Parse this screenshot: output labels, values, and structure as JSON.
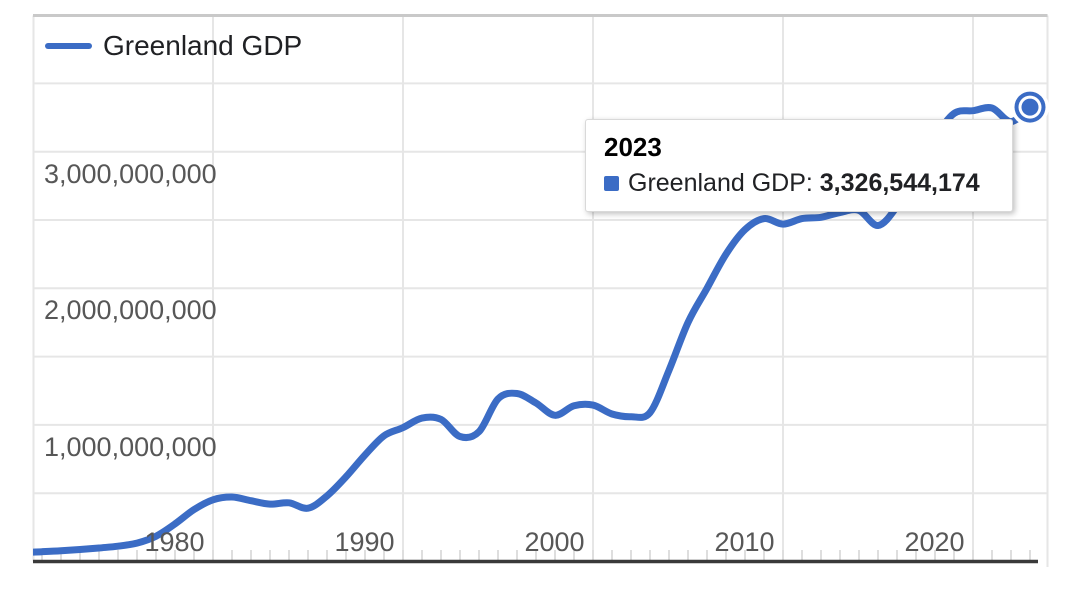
{
  "page": {
    "background": "#ffffff"
  },
  "colors": {
    "line": "#3b6cc5",
    "grid": "#e6e6e6",
    "grid_top_border": "#c9c9c9",
    "minor_tick": "#dedede",
    "axis_baseline": "#3a3a3a",
    "axis_label_text": "#575757",
    "legend_text": "#202124",
    "tooltip_border": "#d9d9d9"
  },
  "legend": {
    "label": "Greenland GDP"
  },
  "tooltip": {
    "year": "2023",
    "series_label": "Greenland GDP",
    "separator": ": ",
    "value": "3,326,544,174"
  },
  "chart_data": {
    "type": "line",
    "title": "Greenland GDP",
    "legend_position": "top-left",
    "grid": "on",
    "x_axis": {
      "tick_years": [
        1980,
        1990,
        2000,
        2010,
        2020
      ],
      "minor_tick_interval_years": 1,
      "range": [
        1970,
        2026
      ]
    },
    "y_axis": {
      "ticks": [
        {
          "value": 1000000000,
          "label": "1,000,000,000"
        },
        {
          "value": 2000000000,
          "label": "2,000,000,000"
        },
        {
          "value": 3000000000,
          "label": "3,000,000,000"
        }
      ],
      "range": [
        0,
        4000000000
      ],
      "minor_gridline_interval": 500000000
    },
    "series": [
      {
        "name": "Greenland GDP",
        "x": [
          1970,
          1971,
          1972,
          1973,
          1974,
          1975,
          1976,
          1977,
          1978,
          1979,
          1980,
          1981,
          1982,
          1983,
          1984,
          1985,
          1986,
          1987,
          1988,
          1989,
          1990,
          1991,
          1992,
          1993,
          1994,
          1995,
          1996,
          1997,
          1998,
          1999,
          2000,
          2001,
          2002,
          2003,
          2004,
          2005,
          2006,
          2007,
          2008,
          2009,
          2010,
          2011,
          2012,
          2013,
          2014,
          2015,
          2016,
          2017,
          2018,
          2019,
          2020,
          2021,
          2022,
          2023
        ],
        "y": [
          66000000,
          72000000,
          79000000,
          88000000,
          99000000,
          112000000,
          135000000,
          185000000,
          275000000,
          380000000,
          452000000,
          472000000,
          445000000,
          420000000,
          430000000,
          390000000,
          480000000,
          620000000,
          780000000,
          920000000,
          980000000,
          1050000000,
          1040000000,
          915000000,
          950000000,
          1190000000,
          1230000000,
          1160000000,
          1070000000,
          1140000000,
          1145000000,
          1080000000,
          1060000000,
          1090000000,
          1400000000,
          1750000000,
          2000000000,
          2250000000,
          2430000000,
          2510000000,
          2470000000,
          2510000000,
          2520000000,
          2555000000,
          2570000000,
          2460000000,
          2600000000,
          2850000000,
          3100000000,
          3280000000,
          3300000000,
          3320000000,
          3220000000,
          3326544174
        ]
      }
    ],
    "selected_point": {
      "x": 2023,
      "y": 3326544174,
      "label": "2023"
    }
  }
}
